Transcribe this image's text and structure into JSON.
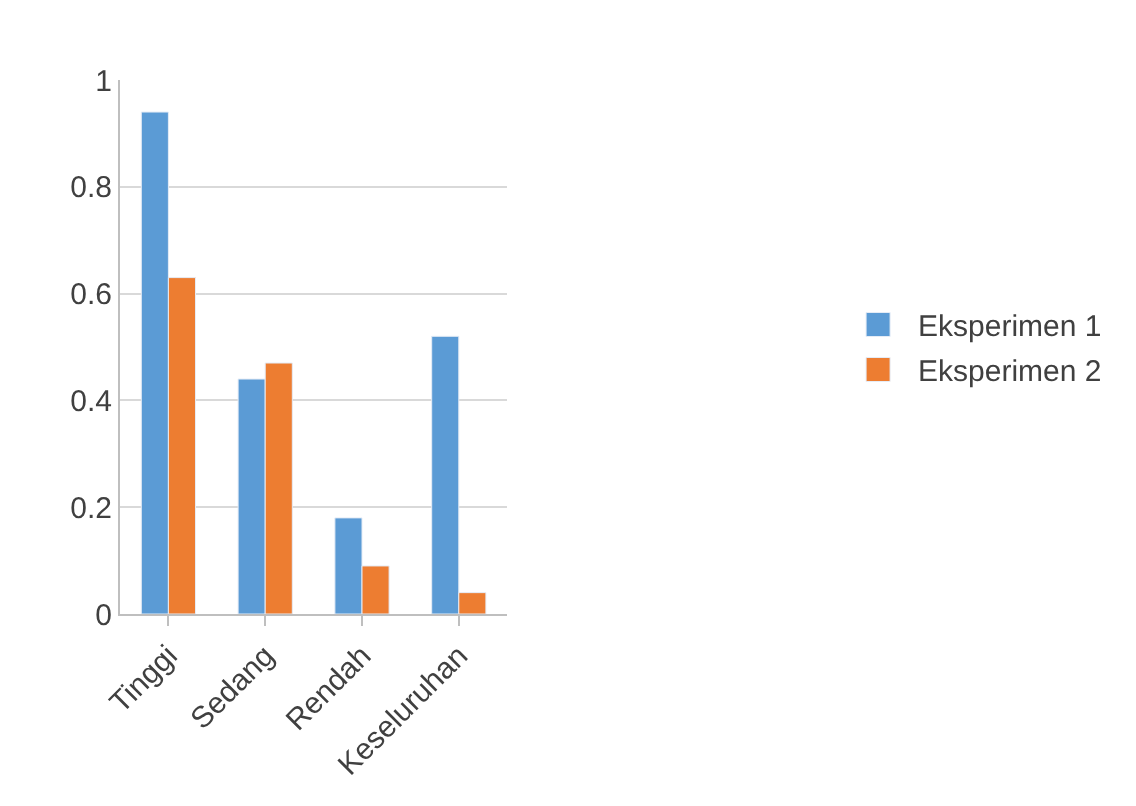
{
  "chart_data": {
    "type": "bar",
    "categories": [
      "Tinggi",
      "Sedang",
      "Rendah",
      "Keseluruhan"
    ],
    "series": [
      {
        "name": "Eksperimen 1",
        "color": "#5b9bd5",
        "values": [
          0.94,
          0.44,
          0.18,
          0.52
        ]
      },
      {
        "name": "Eksperimen 2",
        "color": "#ed7d31",
        "values": [
          0.63,
          0.47,
          0.09,
          0.04
        ]
      }
    ],
    "ylim": [
      0,
      1
    ],
    "yticks": [
      0,
      {
        "value": 0.2,
        "label": "0.2"
      },
      {
        "value": 0.4,
        "label": "0.4"
      },
      {
        "value": 0.6,
        "label": "0.6"
      },
      {
        "value": 0.8,
        "label": "0.8"
      },
      1
    ],
    "grid": "y",
    "legend": "right"
  }
}
